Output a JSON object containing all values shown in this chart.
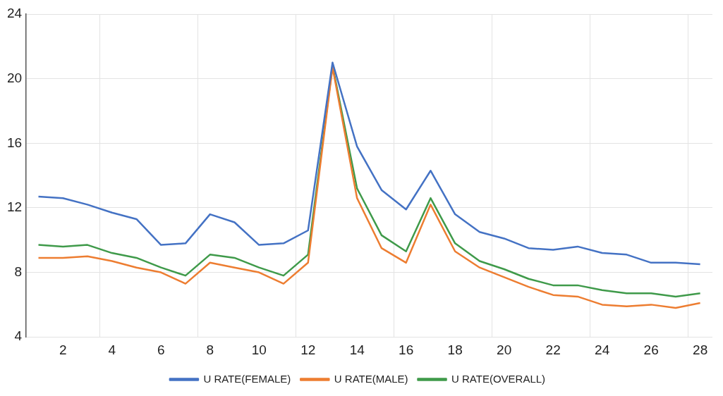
{
  "chart_data": {
    "type": "line",
    "x": [
      1,
      2,
      3,
      4,
      5,
      6,
      7,
      8,
      9,
      10,
      11,
      12,
      13,
      14,
      15,
      16,
      17,
      18,
      19,
      20,
      21,
      22,
      23,
      24,
      25,
      26,
      27,
      28
    ],
    "series": [
      {
        "name": "U RATE(FEMALE)",
        "color": "#4472c4",
        "values": [
          12.7,
          12.6,
          12.2,
          11.7,
          11.3,
          9.7,
          9.8,
          11.6,
          11.1,
          9.7,
          9.8,
          10.6,
          21.0,
          15.8,
          13.1,
          11.9,
          14.3,
          11.6,
          10.5,
          10.1,
          9.5,
          9.4,
          9.6,
          9.2,
          9.1,
          8.6,
          8.6,
          8.5
        ]
      },
      {
        "name": "U RATE(MALE)",
        "color": "#ed7d31",
        "values": [
          8.9,
          8.9,
          9.0,
          8.7,
          8.3,
          8.0,
          7.3,
          8.6,
          8.3,
          8.0,
          7.3,
          8.6,
          20.7,
          12.6,
          9.5,
          8.6,
          12.2,
          9.3,
          8.3,
          7.7,
          7.1,
          6.6,
          6.5,
          6.0,
          5.9,
          6.0,
          5.8,
          6.1
        ]
      },
      {
        "name": "U RATE(OVERALL)",
        "color": "#3f9a4a",
        "values": [
          9.7,
          9.6,
          9.7,
          9.2,
          8.9,
          8.3,
          7.8,
          9.1,
          8.9,
          8.3,
          7.8,
          9.1,
          20.8,
          13.2,
          10.3,
          9.3,
          12.6,
          9.8,
          8.7,
          8.2,
          7.6,
          7.2,
          7.2,
          6.9,
          6.7,
          6.7,
          6.5,
          6.7
        ]
      }
    ],
    "xlim": [
      0.5,
      28.5
    ],
    "xticks": [
      2,
      {
        "value": 3.5,
        "label": null
      },
      4,
      6,
      {
        "value": 7.5,
        "label": null
      },
      8,
      10,
      {
        "value": 11.5,
        "label": null
      },
      12,
      14,
      {
        "value": 15.5,
        "label": null
      },
      16,
      18,
      {
        "value": 19.5,
        "label": null
      },
      20,
      22,
      {
        "value": 23.5,
        "label": null
      },
      24,
      26,
      {
        "value": 27.5,
        "label": null
      },
      28
    ],
    "ylim": [
      4,
      24
    ],
    "yticks": [
      4,
      8,
      12,
      16,
      20,
      24
    ],
    "grid": true,
    "legend": "bottom",
    "marker": "none",
    "line_style": "solid"
  }
}
